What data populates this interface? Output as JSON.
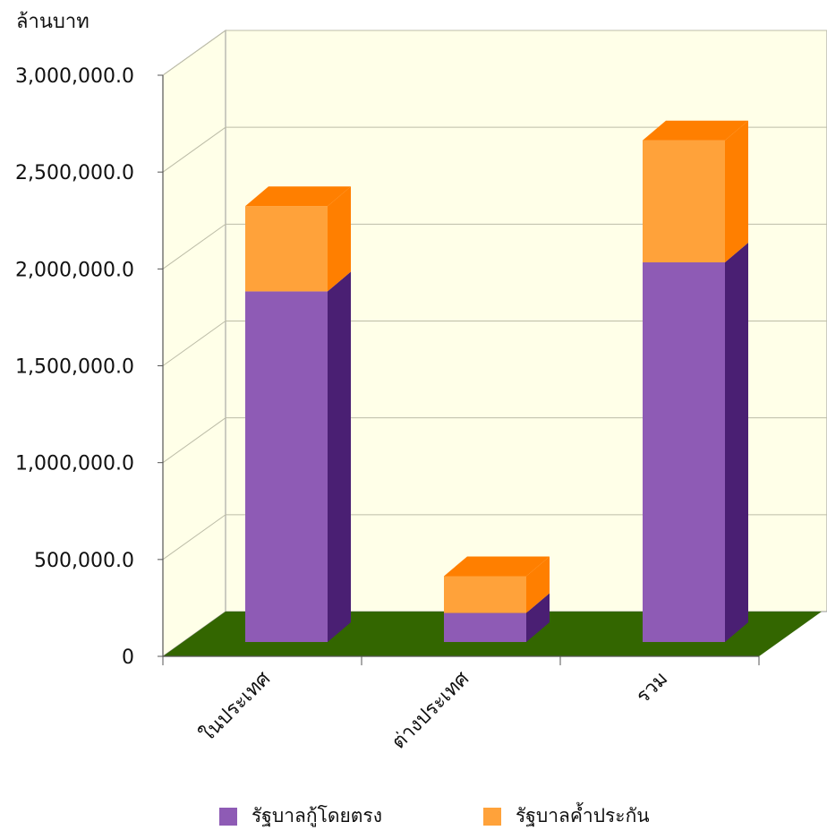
{
  "chart_data": {
    "type": "bar",
    "stacked": true,
    "three_d": true,
    "unit_label": "ล้านบาท",
    "categories": [
      "ในประเทศ",
      "ต่างประเทศ",
      "รวม"
    ],
    "series": [
      {
        "name": "รัฐบาลกู้โดยตรง",
        "values": [
          1810000,
          150000,
          1960000
        ],
        "color": "#8E5BB5"
      },
      {
        "name": "รัฐบาลค้ำประกัน",
        "values": [
          440000,
          190000,
          630000
        ],
        "color": "#FFA23A"
      }
    ],
    "ylim": [
      0,
      3000000
    ],
    "yticks": [
      "0",
      "500,000.0",
      "1,000,000.0",
      "1,500,000.0",
      "2,000,000.0",
      "2,500,000.0",
      "3,000,000.0"
    ],
    "grid": true,
    "legend_position": "bottom",
    "colors": {
      "wall": "#FFFFE8",
      "floor": "#336600",
      "gridline": "#BDBDA8",
      "purple_side": "#4A1F73",
      "orange_side": "#FF7F00",
      "orange_top": "#FF7F00"
    }
  }
}
